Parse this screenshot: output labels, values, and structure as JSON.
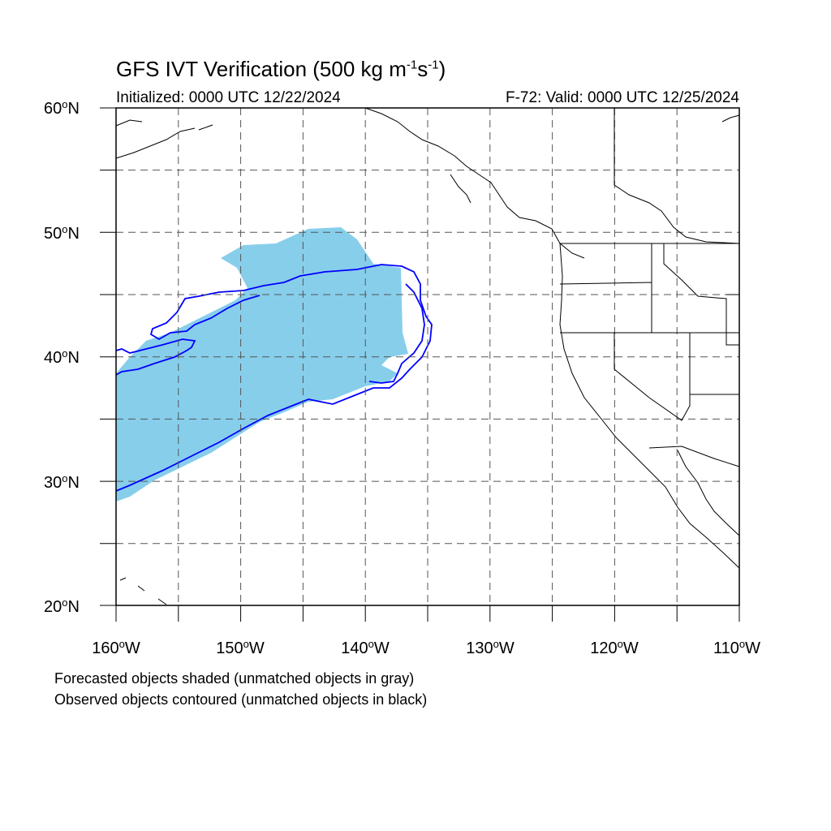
{
  "title": {
    "main": "GFS IVT Verification (500 kg m",
    "sup1": "-1",
    "mid": "s",
    "sup2": "-1",
    "end": ")"
  },
  "initialized": "Initialized: 0000 UTC 12/22/2024",
  "valid": "F-72: Valid: 0000 UTC 12/25/2024",
  "lat_labels": [
    {
      "value": "60",
      "unit": "N"
    },
    {
      "value": "50",
      "unit": "N"
    },
    {
      "value": "40",
      "unit": "N"
    },
    {
      "value": "30",
      "unit": "N"
    },
    {
      "value": "20",
      "unit": "N"
    }
  ],
  "lon_labels": [
    {
      "value": "160",
      "unit": "W"
    },
    {
      "value": "150",
      "unit": "W"
    },
    {
      "value": "140",
      "unit": "W"
    },
    {
      "value": "130",
      "unit": "W"
    },
    {
      "value": "120",
      "unit": "W"
    },
    {
      "value": "110",
      "unit": "W"
    }
  ],
  "degree_symbol": "o",
  "notes": [
    "Forecasted objects shaded (unmatched objects in gray)",
    "Observed objects contoured (unmatched objects in black)"
  ],
  "colors": {
    "forecast_fill": "#87CEEB",
    "observed_contour": "#0000FF",
    "coastline": "#000000",
    "grid": "#555555"
  },
  "map_extent": {
    "lon": [
      -160,
      -110
    ],
    "lat": [
      20,
      60
    ]
  }
}
